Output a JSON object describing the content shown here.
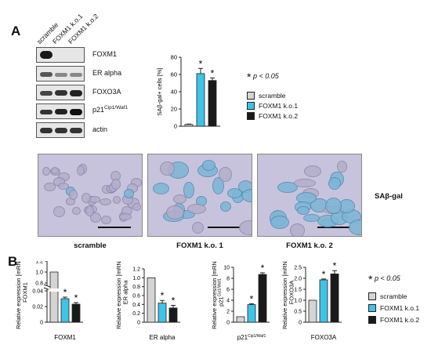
{
  "panel_a": {
    "letter": "A",
    "lanes": [
      "scramble",
      "FOXM1 k.o.1",
      "FOXM1 k.o.2"
    ],
    "blots": [
      "FOXM1",
      "ER alpha",
      "FOXO3A",
      "p21",
      "actin"
    ],
    "p21_superscript": "Cip1/Waf1",
    "significance": "p < 0.05",
    "star": "*"
  },
  "micrographs": {
    "labels": [
      "scramble",
      "FOXM1 k.o. 1",
      "FOXM1 k.o. 2"
    ],
    "stain_label": "SAβ-gal"
  },
  "panel_b": {
    "letter": "B",
    "significance": "p < 0.05",
    "star": "*"
  },
  "legend": {
    "items": [
      "scramble",
      "FOXM1 k.o.1",
      "FOXM1 k.o.2"
    ]
  },
  "colors": {
    "scramble": "#d4d4d4",
    "ko1": "#3fc3e6",
    "ko2": "#1a1a1a",
    "cell_stain": "#7db6d6",
    "background_micro": "#c8c3dc"
  },
  "chart_data": [
    {
      "type": "bar",
      "name": "sa-beta-gal",
      "categories": [
        "scramble",
        "FOXM1 k.o.1",
        "FOXM1 k.o.2"
      ],
      "values": [
        2,
        61,
        53
      ],
      "errors": [
        0.5,
        6,
        3
      ],
      "significant": [
        false,
        true,
        true
      ],
      "ylabel": "SAβ-gal+ cells [%]",
      "ylim": [
        0,
        80
      ],
      "yticks": [
        0,
        20,
        40,
        60,
        80
      ],
      "ytick_labels": [
        "0",
        "20",
        "40",
        "60",
        "80"
      ]
    },
    {
      "type": "bar",
      "name": "foxm1-mrna",
      "categories": [
        "scramble",
        "FOXM1 k.o.1",
        "FOXM1 k.o.2"
      ],
      "values": [
        1.0,
        0.03,
        0.023
      ],
      "errors": [
        0,
        0.002,
        0.002
      ],
      "significant": [
        false,
        true,
        true
      ],
      "broken_axis": true,
      "ylabel": "Relative expression [mRNA] FOXM1",
      "xlabel": "FOXM1",
      "ytick_labels": [
        "0",
        "0.02",
        "0.04",
        "0.8",
        "1.0",
        "1.2"
      ]
    },
    {
      "type": "bar",
      "name": "er-alpha-mrna",
      "categories": [
        "scramble",
        "FOXM1 k.o.1",
        "FOXM1 k.o.2"
      ],
      "values": [
        1.0,
        0.43,
        0.32
      ],
      "errors": [
        0,
        0.06,
        0.06
      ],
      "significant": [
        false,
        true,
        true
      ],
      "ylabel": "Relative expression [mRNA] ER alpha",
      "xlabel": "ER alpha",
      "ylim": [
        0,
        1.2
      ],
      "yticks": [
        0,
        0.2,
        0.4,
        0.6,
        0.8,
        1.0,
        1.2
      ],
      "ytick_labels": [
        "0",
        "0.2",
        "0.4",
        "0.6",
        "0.8",
        "1.0",
        "1.2"
      ]
    },
    {
      "type": "bar",
      "name": "p21-mrna",
      "categories": [
        "scramble",
        "FOXM1 k.o.1",
        "FOXM1 k.o.2"
      ],
      "values": [
        1.0,
        3.2,
        8.7
      ],
      "errors": [
        0,
        0.15,
        0.3
      ],
      "significant": [
        false,
        true,
        true
      ],
      "ylabel": "Relative expression [mRNA] p21",
      "ylabel_superscript": "Cip1/Waf1",
      "xlabel": "p21",
      "xlabel_superscript": "Cip1/Waf1",
      "ylim": [
        0,
        10
      ],
      "yticks": [
        0,
        2,
        4,
        6,
        8,
        10
      ],
      "ytick_labels": [
        "0",
        "2",
        "4",
        "6",
        "8",
        "10"
      ]
    },
    {
      "type": "bar",
      "name": "foxo3a-mrna",
      "categories": [
        "scramble",
        "FOXM1 k.o.1",
        "FOXM1 k.o.2"
      ],
      "values": [
        1.0,
        1.93,
        2.2
      ],
      "errors": [
        0,
        0.04,
        0.15
      ],
      "significant": [
        false,
        true,
        true
      ],
      "ylabel": "Relative expression [mRNA] FOXO3A",
      "xlabel": "FOXO3A",
      "ylim": [
        0,
        2.5
      ],
      "yticks": [
        0,
        0.5,
        1.0,
        1.5,
        2.0,
        2.5
      ],
      "ytick_labels": [
        "0",
        "0.5",
        "1.0",
        "1.5",
        "2.0",
        "2.5"
      ]
    }
  ]
}
